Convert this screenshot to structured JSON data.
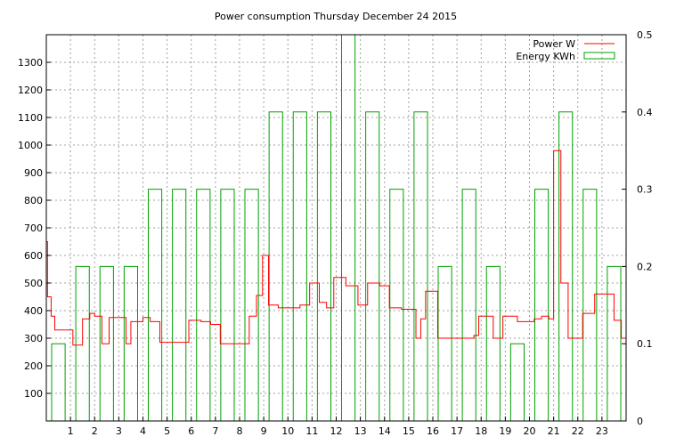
{
  "chart_data": {
    "type": "line",
    "title": "Power consumption Thursday December 24 2015",
    "xlabel": "",
    "ylabel": "",
    "y2label": "",
    "xlim": [
      0,
      24
    ],
    "ylim": [
      0,
      1400
    ],
    "y2lim": [
      0,
      0.5
    ],
    "x_ticks": [
      1,
      2,
      3,
      4,
      5,
      6,
      7,
      8,
      9,
      10,
      11,
      12,
      13,
      14,
      15,
      16,
      17,
      18,
      19,
      20,
      21,
      22,
      23
    ],
    "y_ticks": [
      100,
      200,
      300,
      400,
      500,
      600,
      700,
      800,
      900,
      1000,
      1100,
      1200,
      1300
    ],
    "y2_ticks": [
      0,
      0.1,
      0.2,
      0.3,
      0.4,
      0.5
    ],
    "grid": true,
    "legend_position": "top-right",
    "colors": {
      "power": "#ff0000",
      "energy": "#00a000",
      "grid": "#a0a0a0",
      "axis": "#000000"
    },
    "series": [
      {
        "name": "Power W",
        "axis": "y1",
        "style": "steps",
        "points": [
          [
            0.0,
            650
          ],
          [
            0.05,
            450
          ],
          [
            0.2,
            380
          ],
          [
            0.35,
            330
          ],
          [
            1.1,
            275
          ],
          [
            1.5,
            370
          ],
          [
            1.8,
            390
          ],
          [
            2.0,
            380
          ],
          [
            2.3,
            280
          ],
          [
            2.6,
            375
          ],
          [
            3.3,
            280
          ],
          [
            3.5,
            360
          ],
          [
            4.0,
            375
          ],
          [
            4.3,
            360
          ],
          [
            4.7,
            285
          ],
          [
            5.3,
            285
          ],
          [
            5.6,
            285
          ],
          [
            5.9,
            365
          ],
          [
            6.4,
            360
          ],
          [
            6.8,
            350
          ],
          [
            7.2,
            280
          ],
          [
            7.8,
            280
          ],
          [
            8.4,
            380
          ],
          [
            8.7,
            455
          ],
          [
            8.95,
            600
          ],
          [
            9.2,
            420
          ],
          [
            9.6,
            410
          ],
          [
            10.5,
            420
          ],
          [
            10.9,
            500
          ],
          [
            11.3,
            430
          ],
          [
            11.6,
            410
          ],
          [
            11.9,
            520
          ],
          [
            12.4,
            490
          ],
          [
            12.9,
            420
          ],
          [
            13.3,
            500
          ],
          [
            13.8,
            490
          ],
          [
            14.2,
            410
          ],
          [
            14.7,
            405
          ],
          [
            15.3,
            300
          ],
          [
            15.5,
            370
          ],
          [
            15.7,
            470
          ],
          [
            16.2,
            300
          ],
          [
            17.7,
            310
          ],
          [
            17.9,
            380
          ],
          [
            18.5,
            300
          ],
          [
            18.9,
            380
          ],
          [
            19.5,
            360
          ],
          [
            20.2,
            370
          ],
          [
            20.5,
            380
          ],
          [
            20.8,
            370
          ],
          [
            21.0,
            980
          ],
          [
            21.3,
            500
          ],
          [
            21.6,
            300
          ],
          [
            22.2,
            390
          ],
          [
            22.7,
            460
          ],
          [
            23.5,
            365
          ],
          [
            23.8,
            300
          ],
          [
            24.0,
            300
          ]
        ]
      },
      {
        "name": "Energy KWh",
        "axis": "y2",
        "style": "steps",
        "points": [
          [
            0,
            0.1
          ],
          [
            1,
            0.2
          ],
          [
            2,
            0.2
          ],
          [
            3,
            0.2
          ],
          [
            4,
            0.3
          ],
          [
            5,
            0.3
          ],
          [
            6,
            0.3
          ],
          [
            7,
            0.3
          ],
          [
            8,
            0.3
          ],
          [
            9,
            0.4
          ],
          [
            10,
            0.4
          ],
          [
            11,
            0.4
          ],
          [
            12,
            0.5
          ],
          [
            13,
            0.4
          ],
          [
            14,
            0.3
          ],
          [
            15,
            0.4
          ],
          [
            16,
            0.2
          ],
          [
            17,
            0.3
          ],
          [
            18,
            0.2
          ],
          [
            19,
            0.1
          ],
          [
            20,
            0.3
          ],
          [
            21,
            0.4
          ],
          [
            22,
            0.3
          ],
          [
            23,
            0.2
          ]
        ]
      }
    ]
  }
}
